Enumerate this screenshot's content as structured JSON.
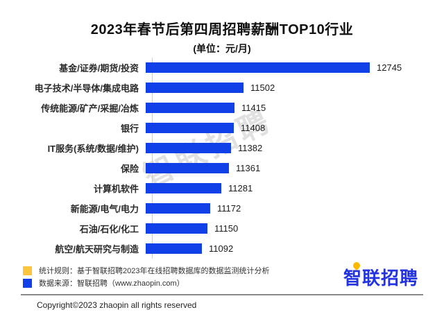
{
  "title": "2023年春节后第四周招聘薪酬TOP10行业",
  "subtitle": "(单位：元/月)",
  "chart_data": {
    "type": "bar",
    "orientation": "horizontal",
    "title": "2023年春节后第四周招聘薪酬TOP10行业",
    "unit_label": "(单位：元/月)",
    "categories": [
      "基金/证券/期货/投资",
      "电子技术/半导体/集成电路",
      "传统能源/矿产/采掘/冶炼",
      "银行",
      "IT服务(系统/数据/维护)",
      "保险",
      "计算机软件",
      "新能源/电气/电力",
      "石油/石化/化工",
      "航空/航天研究与制造"
    ],
    "values": [
      12745,
      11502,
      11415,
      11408,
      11382,
      11361,
      11281,
      11172,
      11150,
      11092
    ],
    "value_labels": [
      "12745",
      "11502",
      "11415",
      "11408",
      "11382",
      "11361",
      "11281",
      "11172",
      "11150",
      "11092"
    ],
    "xlim": [
      10540,
      12745
    ],
    "bar_color": "#1240e8",
    "grid": false,
    "legend_position": "none"
  },
  "watermark": "智联招聘",
  "legend": {
    "stat_rule": {
      "swatch_color": "#fbc53e",
      "text": "统计规则：基于智联招聘2023年在线招聘数据库的数据监测统计分析"
    },
    "data_source": {
      "swatch_color": "#1240e8",
      "text": "数据来源：智联招聘（www.zhaopin.com）"
    }
  },
  "logo": {
    "text": "智联招聘"
  },
  "footer": {
    "copyright": "Copyright©2023 zhaopin all rights reserved"
  }
}
